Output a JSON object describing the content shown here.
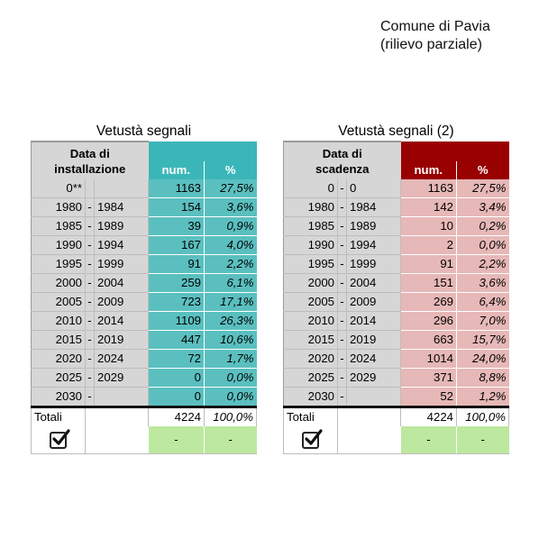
{
  "note": {
    "line1": "Comune di Pavia",
    "line2": "(rilievo parziale)"
  },
  "left_table": {
    "title": "Vetustà segnali",
    "header_line1": "Data di",
    "header_line2": "installazione",
    "col_num": "num.",
    "col_pct": "%",
    "header_color": "#3bb6b8",
    "cell_color": "#5bbfbf",
    "rows": [
      {
        "from": "0**",
        "sep": "",
        "to": "",
        "num": "1163",
        "pct": "27,5%"
      },
      {
        "from": "1980",
        "sep": "-",
        "to": "1984",
        "num": "154",
        "pct": "3,6%"
      },
      {
        "from": "1985",
        "sep": "-",
        "to": "1989",
        "num": "39",
        "pct": "0,9%"
      },
      {
        "from": "1990",
        "sep": "-",
        "to": "1994",
        "num": "167",
        "pct": "4,0%"
      },
      {
        "from": "1995",
        "sep": "-",
        "to": "1999",
        "num": "91",
        "pct": "2,2%"
      },
      {
        "from": "2000",
        "sep": "-",
        "to": "2004",
        "num": "259",
        "pct": "6,1%"
      },
      {
        "from": "2005",
        "sep": "-",
        "to": "2009",
        "num": "723",
        "pct": "17,1%"
      },
      {
        "from": "2010",
        "sep": "-",
        "to": "2014",
        "num": "1109",
        "pct": "26,3%"
      },
      {
        "from": "2015",
        "sep": "-",
        "to": "2019",
        "num": "447",
        "pct": "10,6%"
      },
      {
        "from": "2020",
        "sep": "-",
        "to": "2024",
        "num": "72",
        "pct": "1,7%"
      },
      {
        "from": "2025",
        "sep": "-",
        "to": "2029",
        "num": "0",
        "pct": "0,0%"
      },
      {
        "from": "2030",
        "sep": "-",
        "to": "",
        "num": "0",
        "pct": "0,0%"
      }
    ],
    "total_label": "Totali",
    "total_num": "4224",
    "total_pct": "100,0%",
    "check_num": "-",
    "check_pct": "-"
  },
  "right_table": {
    "title": "Vetustà segnali (2)",
    "header_line1": "Data di",
    "header_line2": "scadenza",
    "col_num": "num.",
    "col_pct": "%",
    "header_color": "#990000",
    "cell_color": "#e6b8b7",
    "rows": [
      {
        "from": "0",
        "sep": "-",
        "to": "0",
        "num": "1163",
        "pct": "27,5%"
      },
      {
        "from": "1980",
        "sep": "-",
        "to": "1984",
        "num": "142",
        "pct": "3,4%"
      },
      {
        "from": "1985",
        "sep": "-",
        "to": "1989",
        "num": "10",
        "pct": "0,2%"
      },
      {
        "from": "1990",
        "sep": "-",
        "to": "1994",
        "num": "2",
        "pct": "0,0%"
      },
      {
        "from": "1995",
        "sep": "-",
        "to": "1999",
        "num": "91",
        "pct": "2,2%"
      },
      {
        "from": "2000",
        "sep": "-",
        "to": "2004",
        "num": "151",
        "pct": "3,6%"
      },
      {
        "from": "2005",
        "sep": "-",
        "to": "2009",
        "num": "269",
        "pct": "6,4%"
      },
      {
        "from": "2010",
        "sep": "-",
        "to": "2014",
        "num": "296",
        "pct": "7,0%"
      },
      {
        "from": "2015",
        "sep": "-",
        "to": "2019",
        "num": "663",
        "pct": "15,7%"
      },
      {
        "from": "2020",
        "sep": "-",
        "to": "2024",
        "num": "1014",
        "pct": "24,0%"
      },
      {
        "from": "2025",
        "sep": "-",
        "to": "2029",
        "num": "371",
        "pct": "8,8%"
      },
      {
        "from": "2030",
        "sep": "-",
        "to": "",
        "num": "52",
        "pct": "1,2%"
      }
    ],
    "total_label": "Totali",
    "total_num": "4224",
    "total_pct": "100,0%",
    "check_num": "-",
    "check_pct": "-"
  }
}
